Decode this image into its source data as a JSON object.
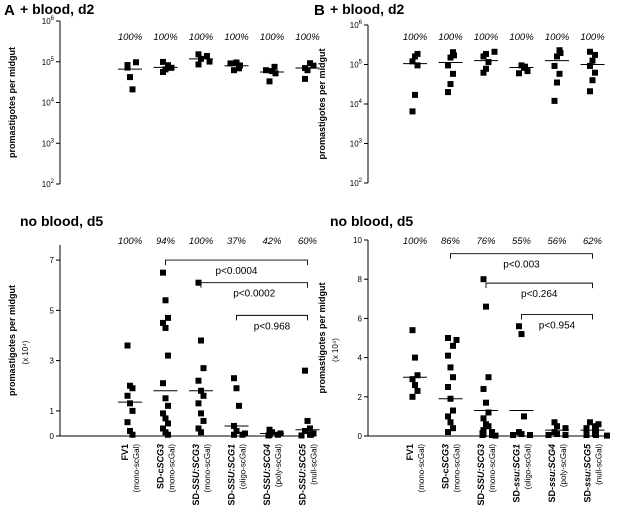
{
  "chart_data": [
    {
      "id": "A-top",
      "panel_label": "A",
      "title": "+ blood, d2",
      "type": "scatter",
      "scale": "log",
      "ylabel": "promastigotes per midgut",
      "yunit": "",
      "ylim": [
        100,
        1000000
      ],
      "yticks": [
        {
          "v": 100,
          "base": "10",
          "exp": "2"
        },
        {
          "v": 1000,
          "base": "10",
          "exp": "3"
        },
        {
          "v": 10000,
          "base": "10",
          "exp": "4"
        },
        {
          "v": 100000,
          "base": "10",
          "exp": "5"
        },
        {
          "v": 1000000,
          "base": "10",
          "exp": "6"
        }
      ],
      "percentages": [
        "100%",
        "100%",
        "100%",
        "100%",
        "100%",
        "100%"
      ],
      "series": [
        {
          "points": [
            72000,
            42000,
            21000,
            83000,
            97000
          ],
          "mean": 66000
        },
        {
          "points": [
            56000,
            65000,
            82000,
            99000,
            71000
          ],
          "mean": 73000
        },
        {
          "points": [
            86000,
            118000,
            101000,
            152000,
            138000
          ],
          "mean": 118000
        },
        {
          "points": [
            62000,
            96000,
            69000,
            81000,
            91000
          ],
          "mean": 80000
        },
        {
          "points": [
            33000,
            59000,
            75000,
            52000,
            62000
          ],
          "mean": 56000
        },
        {
          "points": [
            38000,
            62000,
            92000,
            70000,
            80000
          ],
          "mean": 70000
        }
      ],
      "brackets": []
    },
    {
      "id": "B-top",
      "panel_label": "B",
      "title": "+ blood, d2",
      "type": "scatter",
      "scale": "log",
      "ylabel": "promastigotes per midgut",
      "yunit": "",
      "ylim": [
        100,
        1000000
      ],
      "yticks": [
        {
          "v": 100,
          "base": "10",
          "exp": "2"
        },
        {
          "v": 1000,
          "base": "10",
          "exp": "3"
        },
        {
          "v": 10000,
          "base": "10",
          "exp": "4"
        },
        {
          "v": 100000,
          "base": "10",
          "exp": "5"
        },
        {
          "v": 1000000,
          "base": "10",
          "exp": "6"
        }
      ],
      "percentages": [
        "100%",
        "100%",
        "100%",
        "100%",
        "100%",
        "100%"
      ],
      "series": [
        {
          "points": [
            6500,
            17000,
            95000,
            120000,
            160000,
            185000
          ],
          "mean": 105000
        },
        {
          "points": [
            20000,
            32000,
            58000,
            95000,
            150000,
            205000,
            170000
          ],
          "mean": 112000
        },
        {
          "points": [
            62000,
            78000,
            115000,
            160000,
            185000,
            210000
          ],
          "mean": 125000
        },
        {
          "points": [
            60000,
            68000,
            82000,
            88000,
            95000
          ],
          "mean": 84000
        },
        {
          "points": [
            12000,
            35000,
            58000,
            92000,
            160000,
            230000,
            195000
          ],
          "mean": 125000
        },
        {
          "points": [
            21000,
            40000,
            62000,
            92000,
            125000,
            175000,
            210000
          ],
          "mean": 100000
        }
      ],
      "brackets": []
    },
    {
      "id": "A-bottom",
      "panel_label": "",
      "title": "no blood, d5",
      "type": "scatter",
      "scale": "linear",
      "ylabel": "promastigotes per midgut",
      "yunit": "(x 10⁴)",
      "ylim": [
        0,
        7.6
      ],
      "yticks": [
        {
          "v": 0,
          "label": "0"
        },
        {
          "v": 1,
          "label": "1"
        },
        {
          "v": 3,
          "label": "3"
        },
        {
          "v": 5,
          "label": "5"
        },
        {
          "v": 7,
          "label": "7"
        }
      ],
      "percentages": [
        "100%",
        "94%",
        "100%",
        "37%",
        "42%",
        "60%"
      ],
      "series": [
        {
          "points": [
            3.6,
            2.0,
            1.9,
            1.6,
            1.3,
            1.0,
            0.55,
            0.2,
            0.05
          ],
          "mean": 1.35
        },
        {
          "points": [
            6.5,
            5.4,
            4.7,
            4.5,
            4.3,
            3.2,
            2.1,
            1.5,
            1.2,
            0.9,
            0.7,
            0.5,
            0.3,
            0.15,
            0.05
          ],
          "mean": 1.8
        },
        {
          "points": [
            6.1,
            3.8,
            2.7,
            2.2,
            1.8,
            1.6,
            1.3,
            0.9,
            0.6,
            0.3,
            0.15
          ],
          "mean": 1.8
        },
        {
          "points": [
            2.3,
            1.9,
            1.2,
            0.4,
            0.2,
            0.1,
            0.05,
            0.05
          ],
          "mean": 0.4
        },
        {
          "points": [
            0.25,
            0.15,
            0.1,
            0.05,
            0.05,
            0.02
          ],
          "mean": 0.1
        },
        {
          "points": [
            2.6,
            0.6,
            0.3,
            0.2,
            0.1,
            0.05,
            0.05,
            0.02
          ],
          "mean": 0.25
        }
      ],
      "brackets": [
        {
          "from": 1,
          "to": 5,
          "y": 7.0,
          "label": "p<0.0004"
        },
        {
          "from": 2,
          "to": 5,
          "y": 6.1,
          "label": "p<0.0002"
        },
        {
          "from": 3,
          "to": 5,
          "y": 4.8,
          "label": "p<0.968"
        }
      ]
    },
    {
      "id": "B-bottom",
      "panel_label": "",
      "title": "no blood, d5",
      "type": "scatter",
      "scale": "linear",
      "ylabel": "promastigotes per midgut",
      "yunit": "(x 10⁴)",
      "ylim": [
        0,
        10
      ],
      "yticks": [
        {
          "v": 0,
          "label": "0"
        },
        {
          "v": 2,
          "label": "2"
        },
        {
          "v": 4,
          "label": "4"
        },
        {
          "v": 6,
          "label": "6"
        },
        {
          "v": 8,
          "label": "8"
        },
        {
          "v": 10,
          "label": "10"
        }
      ],
      "percentages": [
        "100%",
        "86%",
        "76%",
        "55%",
        "56%",
        "62%"
      ],
      "series": [
        {
          "points": [
            5.4,
            4.0,
            3.1,
            2.9,
            2.6,
            2.3,
            2.0
          ],
          "mean": 3.0
        },
        {
          "points": [
            5.0,
            4.9,
            4.6,
            4.1,
            3.5,
            3.0,
            2.5,
            1.9,
            1.3,
            1.0,
            0.7,
            0.4,
            0.2
          ],
          "mean": 1.9
        },
        {
          "points": [
            8.0,
            6.6,
            3.0,
            2.4,
            1.7,
            1.2,
            0.9,
            0.6,
            0.5,
            0.3,
            0.2,
            0.15,
            0.1,
            0.05,
            0.05,
            0.02
          ],
          "mean": 1.3
        },
        {
          "points": [
            5.6,
            5.2,
            1.0,
            0.2,
            0.1,
            0.05,
            0.05
          ],
          "mean": 1.3
        },
        {
          "points": [
            0.7,
            0.5,
            0.4,
            0.2,
            0.1,
            0.05,
            0.05
          ],
          "mean": 0.3
        },
        {
          "points": [
            0.7,
            0.6,
            0.5,
            0.45,
            0.4,
            0.3,
            0.25,
            0.2,
            0.1,
            0.05,
            0.05,
            0.02
          ],
          "mean": 0.3
        }
      ],
      "brackets": [
        {
          "from": 1,
          "to": 5,
          "y": 9.3,
          "label": "p<0.003"
        },
        {
          "from": 2,
          "to": 5,
          "y": 7.8,
          "label": "p<0.264"
        },
        {
          "from": 3,
          "to": 5,
          "y": 6.2,
          "label": "p<0.954"
        }
      ]
    }
  ],
  "categories": {
    "A": [
      {
        "pre": "FV1",
        "ital": "",
        "post": "",
        "sub": "(mono-scGal)"
      },
      {
        "pre": "SD-c",
        "ital": "SCG3",
        "post": "",
        "sub": "(mono-scGal)"
      },
      {
        "pre": "SD-",
        "ital": "SSU:SCG3",
        "post": "",
        "sub": "(mono-scGal)"
      },
      {
        "pre": "SD-",
        "ital": "SSU:SCG1",
        "post": "",
        "sub": "(oligo-scGal)"
      },
      {
        "pre": "SD-",
        "ital": "SSU:SCG4",
        "post": "",
        "sub": "(poly-scGal)"
      },
      {
        "pre": "SD-",
        "ital": "SSU:SCG5",
        "post": "",
        "sub": "(null-scGal)"
      }
    ],
    "B": [
      {
        "pre": "FV1",
        "ital": "",
        "post": "",
        "sub": "(mono-scGal)"
      },
      {
        "pre": "SD-c",
        "ital": "SCG3",
        "post": "",
        "sub": "(mono-scGal)"
      },
      {
        "pre": "SD-",
        "ital": "SSU:SCG3",
        "post": "",
        "sub": "(mono-scGal)"
      },
      {
        "pre": "SD-",
        "ital": "ssu:SCG1",
        "post": "",
        "sub": "(oligo-scGal)"
      },
      {
        "pre": "SD-",
        "ital": "ssu:SCG4",
        "post": "",
        "sub": "(poly-scGal)"
      },
      {
        "pre": "SD-",
        "ital": "ssu:SCG5",
        "post": "",
        "sub": "(null-scGal)"
      }
    ]
  }
}
